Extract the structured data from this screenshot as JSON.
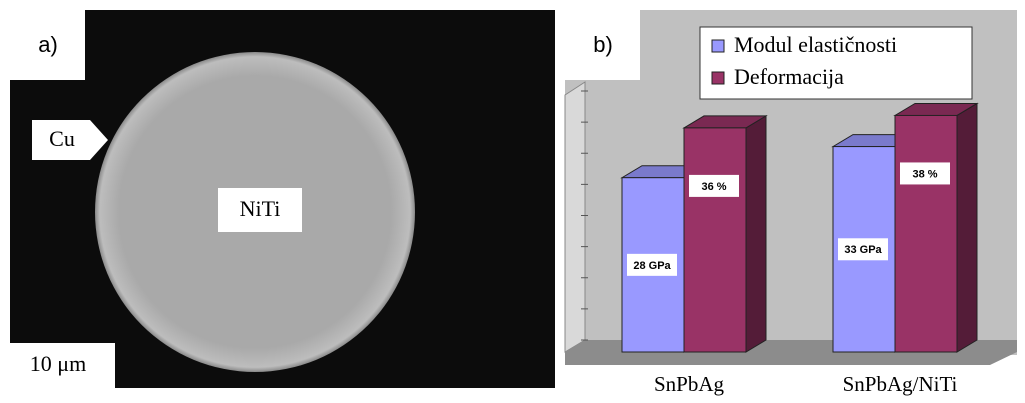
{
  "micrograph": {
    "panel_label": "a)",
    "pointer_label": "Cu",
    "center_label": "NiTi",
    "scale_label": "10 μm"
  },
  "chart_data": {
    "type": "bar3d",
    "panel_label": "b)",
    "categories": [
      "SnPbAg",
      "SnPbAg/NiTi"
    ],
    "series": [
      {
        "name": "Modul elastičnosti",
        "color": "#9999ff",
        "values": [
          28,
          33
        ],
        "value_labels": [
          "28 GPa",
          "33 GPa"
        ]
      },
      {
        "name": "Deformacija",
        "color": "#993366",
        "values": [
          36,
          38
        ],
        "value_labels": [
          "36 %",
          "38 %"
        ]
      }
    ],
    "ylim": [
      0,
      40
    ],
    "yticks": [
      0,
      5,
      10,
      15,
      20,
      25,
      30,
      35,
      40
    ],
    "legend": "top-right"
  }
}
